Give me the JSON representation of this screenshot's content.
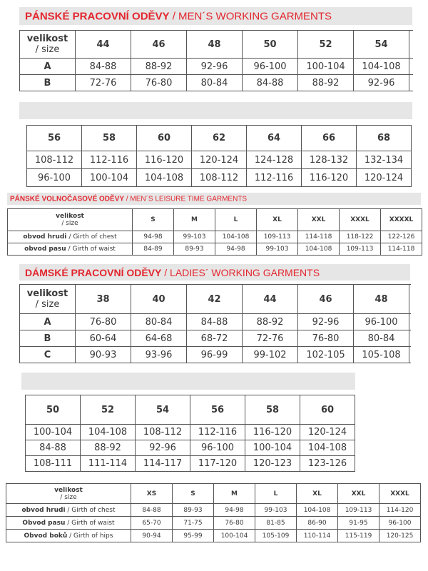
{
  "accent_color": "#e3262e",
  "mens_working": {
    "title_cz": "PÁNSKÉ PRACOVNÍ ODĚVY",
    "title_en": " / MEN´S WORKING GARMENTS",
    "size_label": "velikost",
    "size_sub": "/ size",
    "part1": {
      "sizes": [
        "44",
        "46",
        "48",
        "50",
        "52",
        "54"
      ],
      "rows": [
        {
          "label": "A",
          "values": [
            "84-88",
            "88-92",
            "92-96",
            "96-100",
            "100-104",
            "104-108"
          ]
        },
        {
          "label": "B",
          "values": [
            "72-76",
            "76-80",
            "80-84",
            "84-88",
            "88-92",
            "92-96"
          ]
        }
      ]
    },
    "part2": {
      "sizes": [
        "56",
        "58",
        "60",
        "62",
        "64",
        "66",
        "68"
      ],
      "rows": [
        {
          "values": [
            "108-112",
            "112-116",
            "116-120",
            "120-124",
            "124-128",
            "128-132",
            "132-134"
          ]
        },
        {
          "values": [
            "96-100",
            "100-104",
            "104-108",
            "108-112",
            "112-116",
            "116-120",
            "120-124"
          ]
        }
      ]
    }
  },
  "mens_leisure": {
    "title_cz": "PÁNSKÉ VOLNOČASOVÉ ODĚVY",
    "title_en": " / MEN´S LEISURE TIME GARMENTS",
    "size_label": "velikost",
    "size_sub": "/ size",
    "sizes": [
      "S",
      "M",
      "L",
      "XL",
      "XXL",
      "XXXL",
      "XXXXL"
    ],
    "rows": [
      {
        "label_cz": "obvod hrudi ",
        "label_en": " / Girth of chest",
        "values": [
          "94-98",
          "99-103",
          "104-108",
          "109-113",
          "114-118",
          "118-122",
          "122-126"
        ]
      },
      {
        "label_cz": "obvod pasu",
        "label_en": " / Girth of waist",
        "values": [
          "84-89",
          "89-93",
          "94-98",
          "99-103",
          "104-108",
          "109-113",
          "114-118"
        ]
      }
    ]
  },
  "ladies_working": {
    "title_cz": "DÁMSKÉ PRACOVNÍ ODĚVY",
    "title_en": " / LADIES´ WORKING GARMENTS",
    "size_label": "velikost",
    "size_sub": "/ size",
    "part1": {
      "sizes": [
        "38",
        "40",
        "42",
        "44",
        "46",
        "48"
      ],
      "rows": [
        {
          "label": "A",
          "values": [
            "76-80",
            "80-84",
            "84-88",
            "88-92",
            "92-96",
            "96-100"
          ]
        },
        {
          "label": "B",
          "values": [
            "60-64",
            "64-68",
            "68-72",
            "72-76",
            "76-80",
            "80-84"
          ]
        },
        {
          "label": "C",
          "values": [
            "90-93",
            "93-96",
            "96-99",
            "99-102",
            "102-105",
            "105-108"
          ]
        }
      ]
    },
    "part2": {
      "sizes": [
        "50",
        "52",
        "54",
        "56",
        "58",
        "60"
      ],
      "rows": [
        {
          "values": [
            "100-104",
            "104-108",
            "108-112",
            "112-116",
            "116-120",
            "120-124"
          ]
        },
        {
          "values": [
            "84-88",
            "88-92",
            "92-96",
            "96-100",
            "100-104",
            "104-108"
          ]
        },
        {
          "values": [
            "108-111",
            "111-114",
            "114-117",
            "117-120",
            "120-123",
            "123-126"
          ]
        }
      ]
    }
  },
  "ladies_leisure": {
    "size_label": "velikost",
    "size_sub": "/ size",
    "sizes": [
      "XS",
      "S",
      "M",
      "L",
      "XL",
      "XXL",
      "XXXL"
    ],
    "rows": [
      {
        "label_cz": "obvod hrudi",
        "label_en": " / Girth of chest",
        "values": [
          "84-88",
          "89-93",
          "94-98",
          "99-103",
          "104-108",
          "109-113",
          "114-120"
        ]
      },
      {
        "label_cz": "Obvod pasu",
        "label_en": " / Girth of waist",
        "values": [
          "65-70",
          "71-75",
          "76-80",
          "81-85",
          "86-90",
          "91-95",
          "96-100"
        ]
      },
      {
        "label_cz": "Obvod boků",
        "label_en": " / Girth of hips",
        "values": [
          "90-94",
          "95-99",
          "100-104",
          "105-109",
          "110-114",
          "115-119",
          "120-125"
        ]
      }
    ]
  }
}
